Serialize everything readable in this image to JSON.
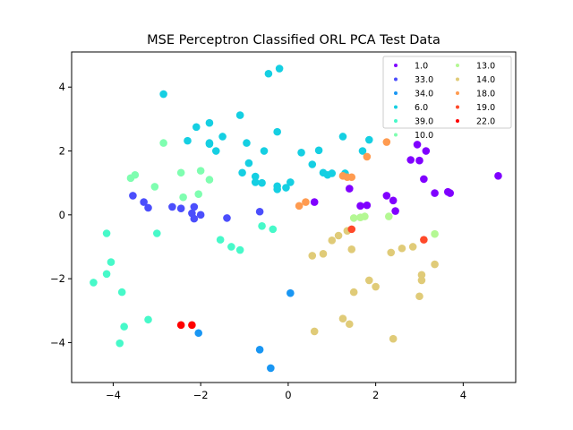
{
  "chart_data": {
    "type": "scatter",
    "title": "MSE Perceptron Classified ORL PCA Test Data",
    "xlabel": "",
    "ylabel": "",
    "xlim": [
      -4.95,
      5.2
    ],
    "ylim": [
      -5.25,
      5.1
    ],
    "xticks": [
      -4,
      -2,
      0,
      2,
      4
    ],
    "yticks": [
      -4,
      -2,
      0,
      2,
      4
    ],
    "xtick_labels": [
      "−4",
      "−2",
      "0",
      "2",
      "4"
    ],
    "ytick_labels": [
      "−4",
      "−2",
      "0",
      "2",
      "4"
    ],
    "grid": false,
    "legend_position": "upper-right",
    "legend_columns": 2,
    "series": [
      {
        "name": "1.0",
        "color": "#8000ff",
        "points": [
          [
            0.6,
            0.4
          ],
          [
            1.4,
            0.82
          ],
          [
            1.65,
            0.28
          ],
          [
            1.8,
            0.3
          ],
          [
            2.25,
            0.6
          ],
          [
            2.4,
            0.45
          ],
          [
            2.45,
            0.12
          ],
          [
            2.8,
            1.72
          ],
          [
            2.95,
            2.2
          ],
          [
            3.0,
            1.7
          ],
          [
            3.1,
            1.12
          ],
          [
            3.15,
            2.0
          ],
          [
            3.35,
            0.68
          ],
          [
            3.65,
            0.72
          ],
          [
            3.7,
            0.68
          ],
          [
            4.8,
            1.22
          ]
        ]
      },
      {
        "name": "33.0",
        "color": "#4b4efc",
        "points": [
          [
            -3.55,
            0.6
          ],
          [
            -3.3,
            0.4
          ],
          [
            -3.2,
            0.22
          ],
          [
            -2.65,
            0.25
          ],
          [
            -2.45,
            0.2
          ],
          [
            -2.2,
            0.05
          ],
          [
            -2.15,
            0.25
          ],
          [
            -2.15,
            -0.12
          ],
          [
            -2.0,
            0.0
          ],
          [
            -1.4,
            -0.1
          ],
          [
            -0.65,
            0.1
          ]
        ]
      },
      {
        "name": "34.0",
        "color": "#1996f3",
        "points": [
          [
            -2.05,
            -3.7
          ],
          [
            -0.65,
            -4.22
          ],
          [
            -0.4,
            -4.8
          ],
          [
            0.05,
            -2.45
          ]
        ]
      },
      {
        "name": "6.0",
        "color": "#15cfe2",
        "points": [
          [
            -2.85,
            3.78
          ],
          [
            -2.3,
            2.32
          ],
          [
            -2.1,
            2.75
          ],
          [
            -1.8,
            2.88
          ],
          [
            -1.8,
            2.22
          ],
          [
            -1.8,
            2.25
          ],
          [
            -1.65,
            2.0
          ],
          [
            -1.5,
            2.45
          ],
          [
            -1.1,
            3.12
          ],
          [
            -1.05,
            1.32
          ],
          [
            -0.95,
            2.25
          ],
          [
            -0.9,
            1.62
          ],
          [
            -0.75,
            1.02
          ],
          [
            -0.75,
            1.2
          ],
          [
            -0.6,
            1.0
          ],
          [
            -0.55,
            2.0
          ],
          [
            -0.45,
            4.42
          ],
          [
            -0.25,
            2.6
          ],
          [
            -0.25,
            0.9
          ],
          [
            -0.25,
            0.8
          ],
          [
            -0.2,
            4.58
          ],
          [
            -0.05,
            0.85
          ],
          [
            0.05,
            1.02
          ],
          [
            0.3,
            1.95
          ],
          [
            0.55,
            1.58
          ],
          [
            0.7,
            2.02
          ],
          [
            0.8,
            1.32
          ],
          [
            0.9,
            1.25
          ],
          [
            1.0,
            1.3
          ],
          [
            1.25,
            2.45
          ],
          [
            1.3,
            1.3
          ],
          [
            1.7,
            2.0
          ],
          [
            1.85,
            2.35
          ]
        ]
      },
      {
        "name": "39.0",
        "color": "#47f9c9",
        "points": [
          [
            -4.45,
            -2.12
          ],
          [
            -4.15,
            -0.58
          ],
          [
            -4.15,
            -1.85
          ],
          [
            -4.05,
            -1.48
          ],
          [
            -3.85,
            -4.02
          ],
          [
            -3.8,
            -2.42
          ],
          [
            -3.75,
            -3.5
          ],
          [
            -3.2,
            -3.28
          ],
          [
            -3.0,
            -0.58
          ],
          [
            -1.55,
            -0.78
          ],
          [
            -1.3,
            -1.0
          ],
          [
            -1.1,
            -1.1
          ],
          [
            -0.6,
            -0.35
          ],
          [
            -0.35,
            -0.45
          ]
        ]
      },
      {
        "name": "10.0",
        "color": "#7ffeb0",
        "points": [
          [
            -3.6,
            1.15
          ],
          [
            -3.5,
            1.25
          ],
          [
            -3.05,
            0.88
          ],
          [
            -2.85,
            2.25
          ],
          [
            -2.45,
            1.32
          ],
          [
            -2.4,
            0.55
          ],
          [
            -2.05,
            0.65
          ],
          [
            -2.0,
            1.38
          ],
          [
            -1.8,
            1.1
          ]
        ]
      },
      {
        "name": "13.0",
        "color": "#b4f893",
        "points": [
          [
            1.5,
            -0.1
          ],
          [
            1.65,
            -0.08
          ],
          [
            1.75,
            -0.05
          ],
          [
            2.3,
            -0.05
          ],
          [
            3.35,
            -0.6
          ]
        ]
      },
      {
        "name": "14.0",
        "color": "#e0cb78",
        "points": [
          [
            0.55,
            -1.28
          ],
          [
            0.6,
            -3.65
          ],
          [
            0.8,
            -1.22
          ],
          [
            1.0,
            -0.8
          ],
          [
            1.15,
            -0.65
          ],
          [
            1.25,
            -3.25
          ],
          [
            1.35,
            -0.5
          ],
          [
            1.4,
            -3.42
          ],
          [
            1.45,
            -1.08
          ],
          [
            1.5,
            -2.42
          ],
          [
            1.85,
            -2.05
          ],
          [
            2.0,
            -2.25
          ],
          [
            2.35,
            -1.18
          ],
          [
            2.4,
            -3.88
          ],
          [
            2.6,
            -1.05
          ],
          [
            2.85,
            -1.0
          ],
          [
            3.0,
            -2.55
          ],
          [
            3.05,
            -2.05
          ],
          [
            3.05,
            -1.88
          ],
          [
            3.35,
            -1.55
          ]
        ]
      },
      {
        "name": "18.0",
        "color": "#ff9b50",
        "points": [
          [
            0.25,
            0.28
          ],
          [
            0.4,
            0.4
          ],
          [
            1.25,
            1.22
          ],
          [
            1.35,
            1.18
          ],
          [
            1.45,
            1.18
          ],
          [
            1.8,
            1.82
          ],
          [
            2.25,
            2.28
          ]
        ]
      },
      {
        "name": "19.0",
        "color": "#ff4929",
        "points": [
          [
            1.45,
            -0.45
          ],
          [
            3.1,
            -0.78
          ]
        ]
      },
      {
        "name": "22.0",
        "color": "#ff0000",
        "points": [
          [
            -2.45,
            -3.45
          ],
          [
            -2.2,
            -3.45
          ]
        ]
      }
    ]
  }
}
